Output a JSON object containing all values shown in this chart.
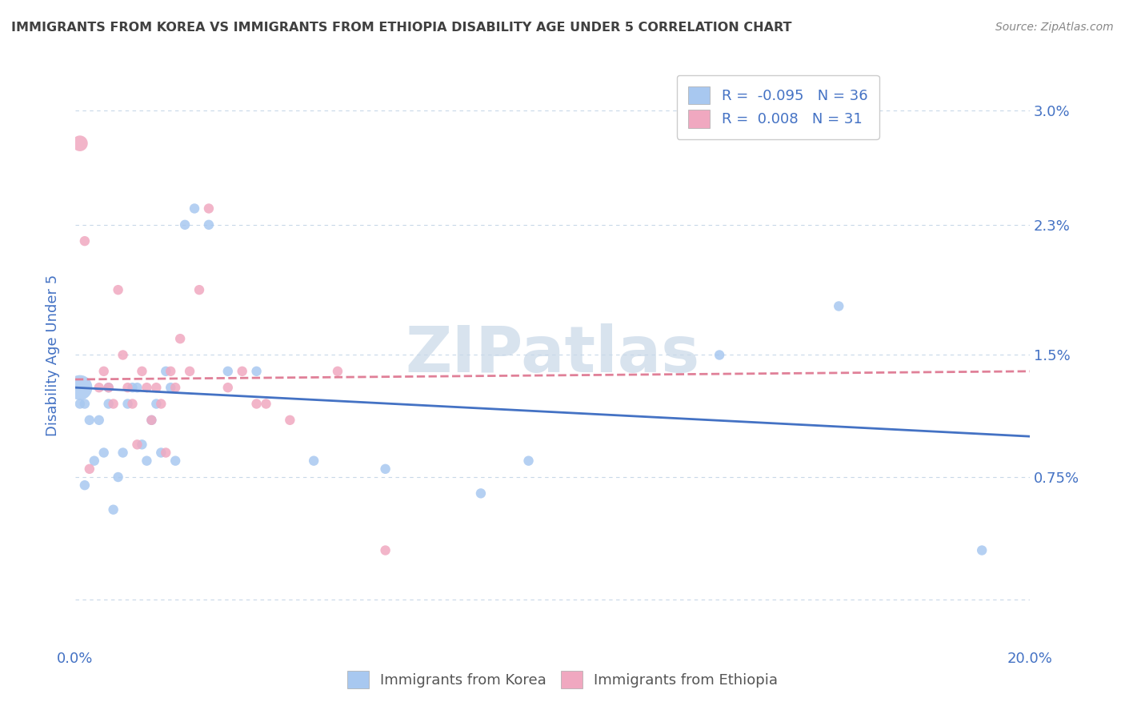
{
  "title": "IMMIGRANTS FROM KOREA VS IMMIGRANTS FROM ETHIOPIA DISABILITY AGE UNDER 5 CORRELATION CHART",
  "source": "Source: ZipAtlas.com",
  "ylabel": "Disability Age Under 5",
  "xlim": [
    0.0,
    0.2
  ],
  "ylim": [
    -0.003,
    0.033
  ],
  "xticks": [
    0.0,
    0.04,
    0.08,
    0.12,
    0.16,
    0.2
  ],
  "xtick_labels": [
    "0.0%",
    "",
    "",
    "",
    "",
    "20.0%"
  ],
  "yticks": [
    0.0,
    0.0075,
    0.015,
    0.023,
    0.03
  ],
  "ytick_labels": [
    "",
    "0.75%",
    "1.5%",
    "2.3%",
    "3.0%"
  ],
  "korea_R": "-0.095",
  "korea_N": "36",
  "ethiopia_R": "0.008",
  "ethiopia_N": "31",
  "korea_color": "#a8c8f0",
  "ethiopia_color": "#f0a8c0",
  "trend_korea_color": "#4472c4",
  "trend_ethiopia_color": "#e08098",
  "korea_scatter_x": [
    0.001,
    0.001,
    0.002,
    0.003,
    0.004,
    0.005,
    0.006,
    0.007,
    0.007,
    0.008,
    0.009,
    0.01,
    0.011,
    0.012,
    0.013,
    0.014,
    0.015,
    0.016,
    0.017,
    0.018,
    0.019,
    0.02,
    0.021,
    0.023,
    0.025,
    0.028,
    0.032,
    0.038,
    0.05,
    0.065,
    0.085,
    0.095,
    0.135,
    0.16,
    0.19,
    0.002
  ],
  "korea_scatter_y": [
    0.013,
    0.012,
    0.012,
    0.011,
    0.0085,
    0.011,
    0.009,
    0.012,
    0.013,
    0.0055,
    0.0075,
    0.009,
    0.012,
    0.013,
    0.013,
    0.0095,
    0.0085,
    0.011,
    0.012,
    0.009,
    0.014,
    0.013,
    0.0085,
    0.023,
    0.024,
    0.023,
    0.014,
    0.014,
    0.0085,
    0.008,
    0.0065,
    0.0085,
    0.015,
    0.018,
    0.003,
    0.007
  ],
  "ethiopia_scatter_x": [
    0.001,
    0.002,
    0.003,
    0.005,
    0.006,
    0.007,
    0.008,
    0.009,
    0.01,
    0.011,
    0.012,
    0.013,
    0.014,
    0.015,
    0.016,
    0.017,
    0.018,
    0.019,
    0.02,
    0.021,
    0.022,
    0.024,
    0.026,
    0.028,
    0.032,
    0.035,
    0.038,
    0.04,
    0.045,
    0.055,
    0.065
  ],
  "ethiopia_scatter_y": [
    0.028,
    0.022,
    0.008,
    0.013,
    0.014,
    0.013,
    0.012,
    0.019,
    0.015,
    0.013,
    0.012,
    0.0095,
    0.014,
    0.013,
    0.011,
    0.013,
    0.012,
    0.009,
    0.014,
    0.013,
    0.016,
    0.014,
    0.019,
    0.024,
    0.013,
    0.014,
    0.012,
    0.012,
    0.011,
    0.014,
    0.003
  ],
  "bubble_size": 80,
  "background_color": "#ffffff",
  "grid_color": "#c8d8e8",
  "title_color": "#404040",
  "axis_label_color": "#4472c4",
  "legend_text_color": "#4472c4",
  "korea_trend_x0": 0.0,
  "korea_trend_y0": 0.013,
  "korea_trend_x1": 0.2,
  "korea_trend_y1": 0.01,
  "ethiopia_trend_x0": 0.0,
  "ethiopia_trend_y0": 0.0135,
  "ethiopia_trend_x1": 0.2,
  "ethiopia_trend_y1": 0.014
}
